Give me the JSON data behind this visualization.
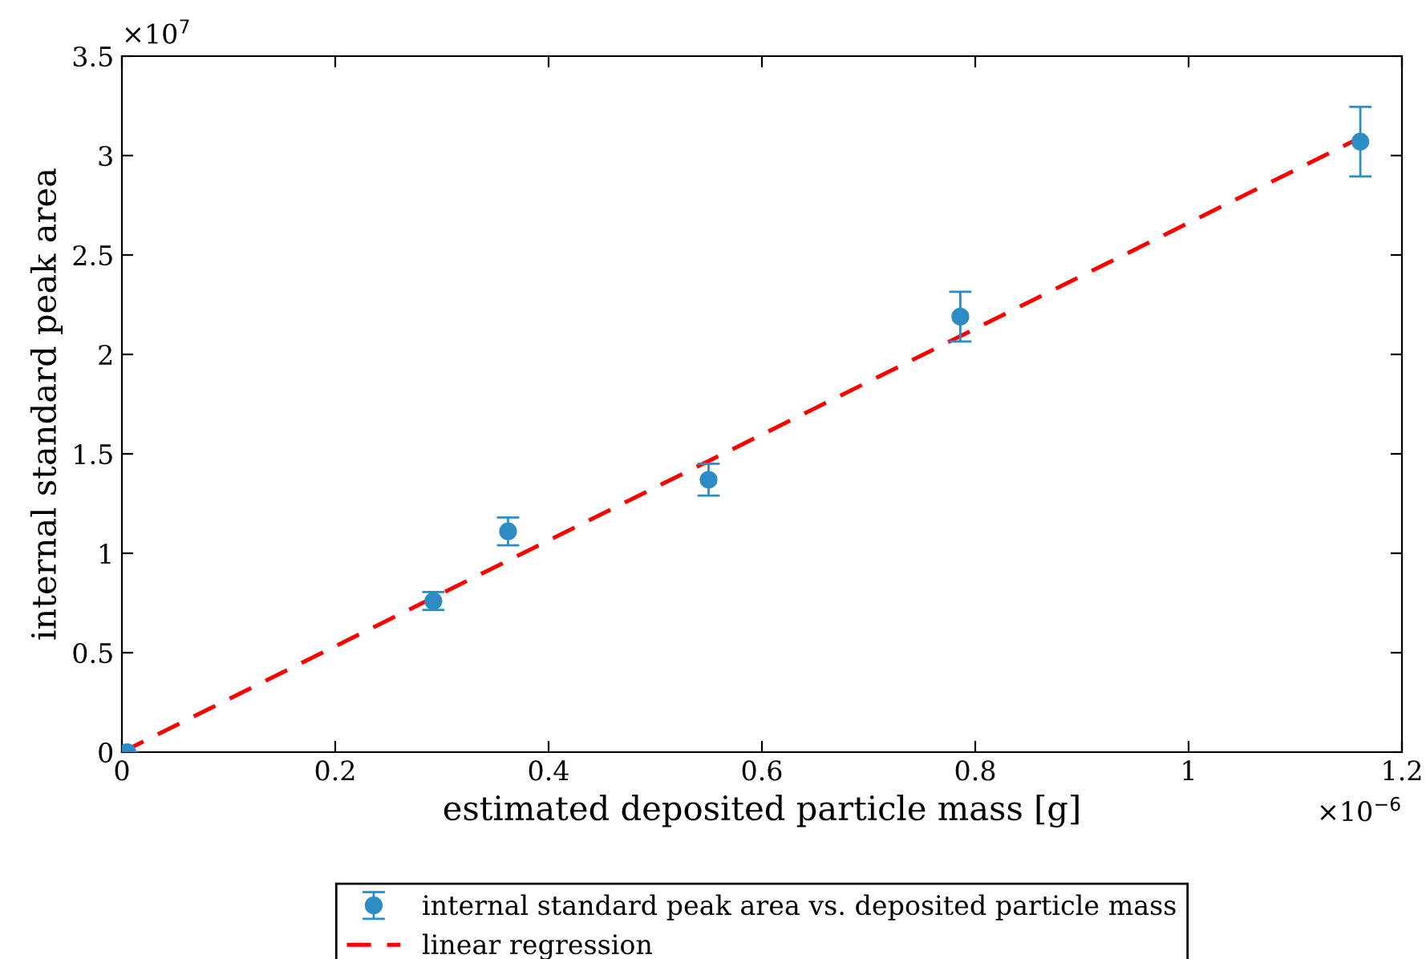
{
  "chart_data": {
    "type": "scatter",
    "xlabel": "estimated deposited particle mass [g]",
    "ylabel": "internal standard peak area",
    "xlim": [
      0,
      1.2
    ],
    "xticks": [
      0,
      0.2,
      0.4,
      0.6,
      0.8,
      1,
      1.2
    ],
    "ylim": [
      0,
      3.5
    ],
    "yticks": [
      0,
      0.5,
      1,
      1.5,
      2,
      2.5,
      3,
      3.5
    ],
    "annotations": [
      "×10$^{7}$",
      "×10$^{−6}$"
    ],
    "grid": false,
    "legend": "bottom",
    "series": [
      {
        "name": "internal standard peak area vs. deposited particle mass",
        "color": "#2e8cc4",
        "marker": "circle",
        "x": [
          0.005,
          0.292,
          0.362,
          0.55,
          0.786,
          1.161
        ],
        "values": [
          0,
          0.76,
          1.11,
          1.37,
          2.19,
          3.07
        ],
        "errors": [
          null,
          0.045,
          0.07,
          0.08,
          0.125,
          0.175
        ]
      },
      {
        "name": "linear regression",
        "type": "line",
        "color": "#ff0000",
        "line_style": "dashed",
        "marker": "none",
        "x": [
          0,
          1.161
        ],
        "values": [
          0,
          3.09
        ]
      }
    ]
  }
}
